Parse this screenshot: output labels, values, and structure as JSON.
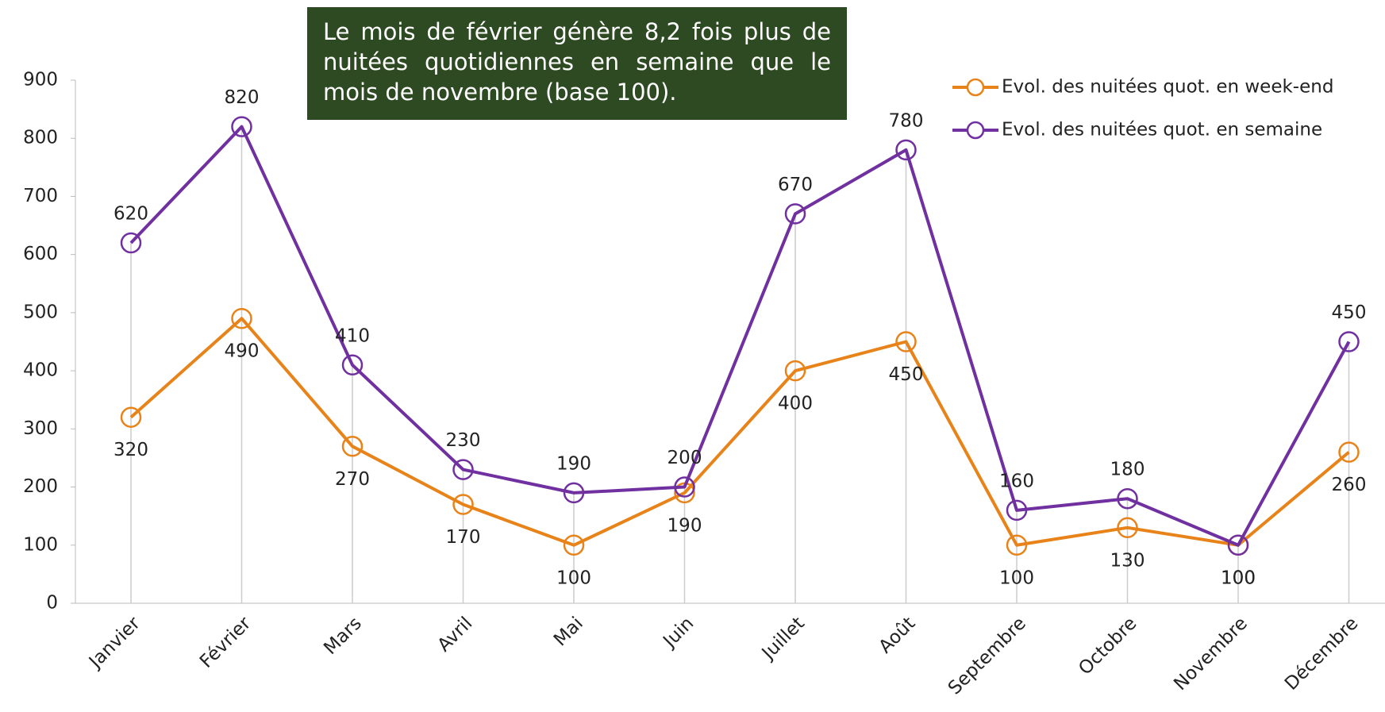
{
  "chart_data": {
    "type": "line",
    "annotation": "Le mois de février génère 8,2 fois plus de nuitées quotidiennes en semaine que le mois de novembre (base 100).",
    "categories": [
      "Janvier",
      "Février",
      "Mars",
      "Avril",
      "Mai",
      "Juin",
      "Juillet",
      "Août",
      "Septembre",
      "Octobre",
      "Novembre",
      "Décembre"
    ],
    "series": [
      {
        "name": "Evol. des nuitées quot. en week-end",
        "color": "#e8831a",
        "values": [
          320,
          490,
          270,
          170,
          100,
          190,
          400,
          450,
          100,
          130,
          100,
          260
        ]
      },
      {
        "name": "Evol. des nuitées quot. en semaine",
        "color": "#7030a0",
        "values": [
          620,
          820,
          410,
          230,
          190,
          200,
          670,
          780,
          160,
          180,
          100,
          450
        ]
      }
    ],
    "ylim": [
      0,
      900
    ],
    "yticks": [
      0,
      100,
      200,
      300,
      400,
      500,
      600,
      700,
      800,
      900
    ],
    "legend": "upper right"
  }
}
